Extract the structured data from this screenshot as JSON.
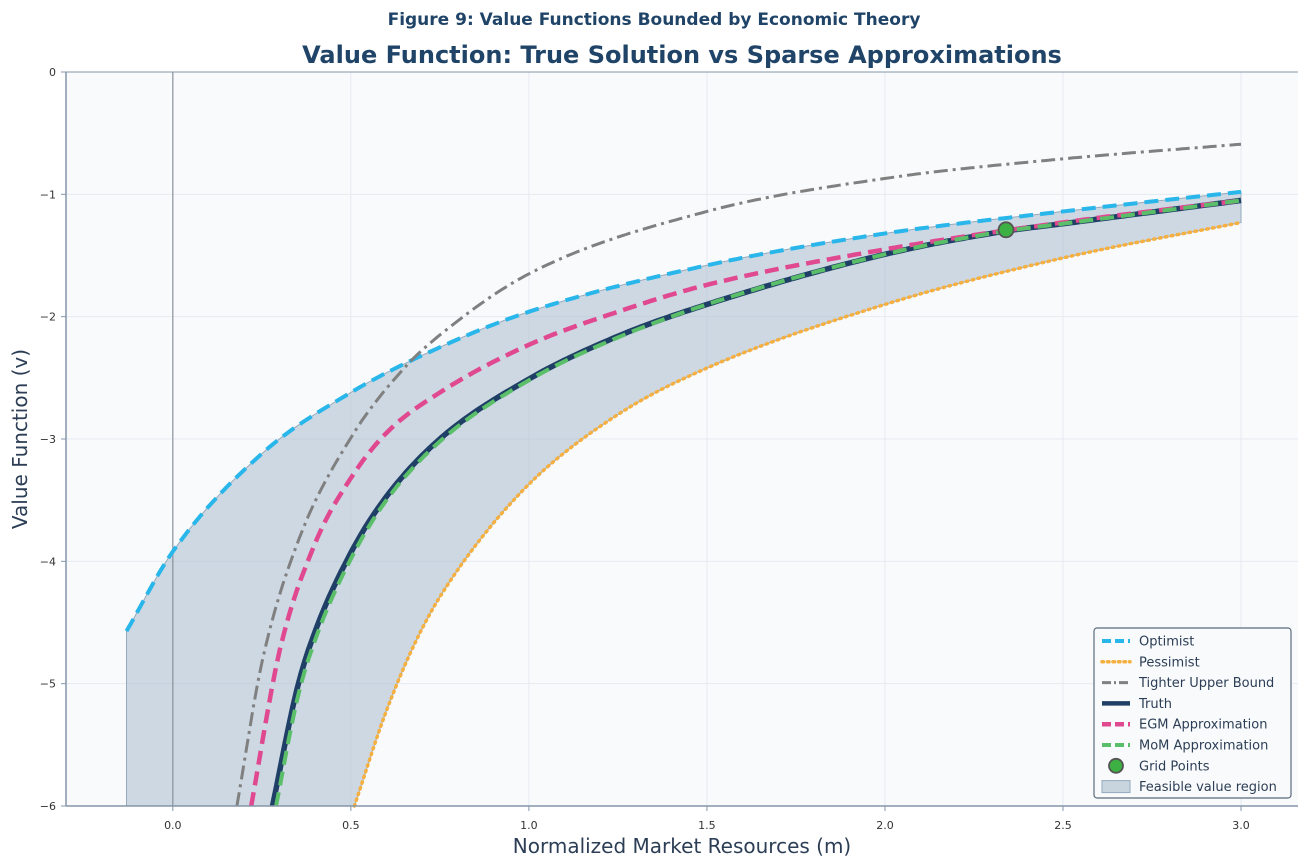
{
  "chart_data": {
    "type": "line",
    "suptitle": "Figure 9: Value Functions Bounded by Economic Theory",
    "title": "Value Function: True Solution vs Sparse Approximations",
    "xlabel": "Normalized Market Resources (m)",
    "ylabel": "Value Function (v)",
    "xlim": [
      -0.3,
      3.16
    ],
    "ylim": [
      -6,
      0
    ],
    "xticks": [
      0.0,
      0.5,
      1.0,
      1.5,
      2.0,
      2.5,
      3.0
    ],
    "xtick_labels": [
      "0.0",
      "0.5",
      "1.0",
      "1.5",
      "2.0",
      "2.5",
      "3.0"
    ],
    "yticks": [
      0,
      -1,
      -2,
      -3,
      -4,
      -5,
      -6
    ],
    "ytick_labels": [
      "0",
      "−1",
      "−2",
      "−3",
      "−4",
      "−5",
      "−6"
    ],
    "grid": true,
    "legend_position": "lower-right",
    "vertical_reference_line_x": 0.0,
    "series": [
      {
        "key": "optimist",
        "name": "Optimist",
        "color": "#29b6ea",
        "style": "dashed",
        "x": [
          -0.13,
          0.0,
          0.25,
          0.5,
          0.75,
          1.0,
          1.5,
          2.0,
          2.5,
          3.0
        ],
        "y": [
          -4.57,
          -3.92,
          -3.12,
          -2.62,
          -2.25,
          -1.96,
          -1.58,
          -1.32,
          -1.14,
          -0.98
        ]
      },
      {
        "key": "pessimist",
        "name": "Pessimist",
        "color": "#f5b041",
        "style": "dotted",
        "x": [
          0.51,
          0.6,
          0.7,
          0.8,
          1.0,
          1.25,
          1.5,
          2.0,
          2.5,
          3.0
        ],
        "y": [
          -6.0,
          -5.22,
          -4.55,
          -4.07,
          -3.37,
          -2.8,
          -2.42,
          -1.9,
          -1.52,
          -1.23
        ]
      },
      {
        "key": "tighter_upper_bound",
        "name": "Tighter Upper Bound",
        "color": "#808080",
        "style": "dashdot",
        "x": [
          0.18,
          0.25,
          0.35,
          0.5,
          0.65,
          0.75,
          1.0,
          1.5,
          2.0,
          2.5,
          3.0
        ],
        "y": [
          -6.0,
          -4.83,
          -3.85,
          -2.99,
          -2.42,
          -2.15,
          -1.65,
          -1.14,
          -0.87,
          -0.71,
          -0.59
        ]
      },
      {
        "key": "truth",
        "name": "Truth",
        "color": "#1f3f66",
        "style": "solid",
        "x": [
          0.28,
          0.35,
          0.4,
          0.5,
          0.6,
          0.75,
          1.0,
          1.25,
          1.5,
          2.0,
          2.34,
          2.5,
          3.0
        ],
        "y": [
          -6.0,
          -5.03,
          -4.57,
          -3.93,
          -3.47,
          -3.0,
          -2.51,
          -2.16,
          -1.9,
          -1.49,
          -1.3,
          -1.24,
          -1.05
        ]
      },
      {
        "key": "egm",
        "name": "EGM Approximation",
        "color": "#e04890",
        "style": "dashed",
        "x": [
          0.22,
          0.3,
          0.4,
          0.5,
          0.6,
          0.75,
          1.0,
          1.25,
          1.5,
          2.0,
          2.5,
          3.0
        ],
        "y": [
          -6.0,
          -4.73,
          -3.85,
          -3.32,
          -2.95,
          -2.62,
          -2.23,
          -1.96,
          -1.74,
          -1.45,
          -1.23,
          -1.05
        ]
      },
      {
        "key": "mom",
        "name": "MoM Approximation",
        "color": "#5bbf6a",
        "style": "dashed",
        "x": [
          0.29,
          0.35,
          0.4,
          0.5,
          0.6,
          0.75,
          1.0,
          1.25,
          1.5,
          2.0,
          2.34,
          2.5,
          3.0
        ],
        "y": [
          -6.0,
          -5.12,
          -4.64,
          -3.98,
          -3.5,
          -3.02,
          -2.52,
          -2.17,
          -1.9,
          -1.49,
          -1.3,
          -1.24,
          -1.05
        ]
      }
    ],
    "grid_points": {
      "name": "Grid Points",
      "color": "#3cb043",
      "x": [
        2.34
      ],
      "y": [
        -1.29
      ]
    },
    "feasible_region": {
      "name": "Feasible value region",
      "color": "#a9bccc"
    }
  }
}
